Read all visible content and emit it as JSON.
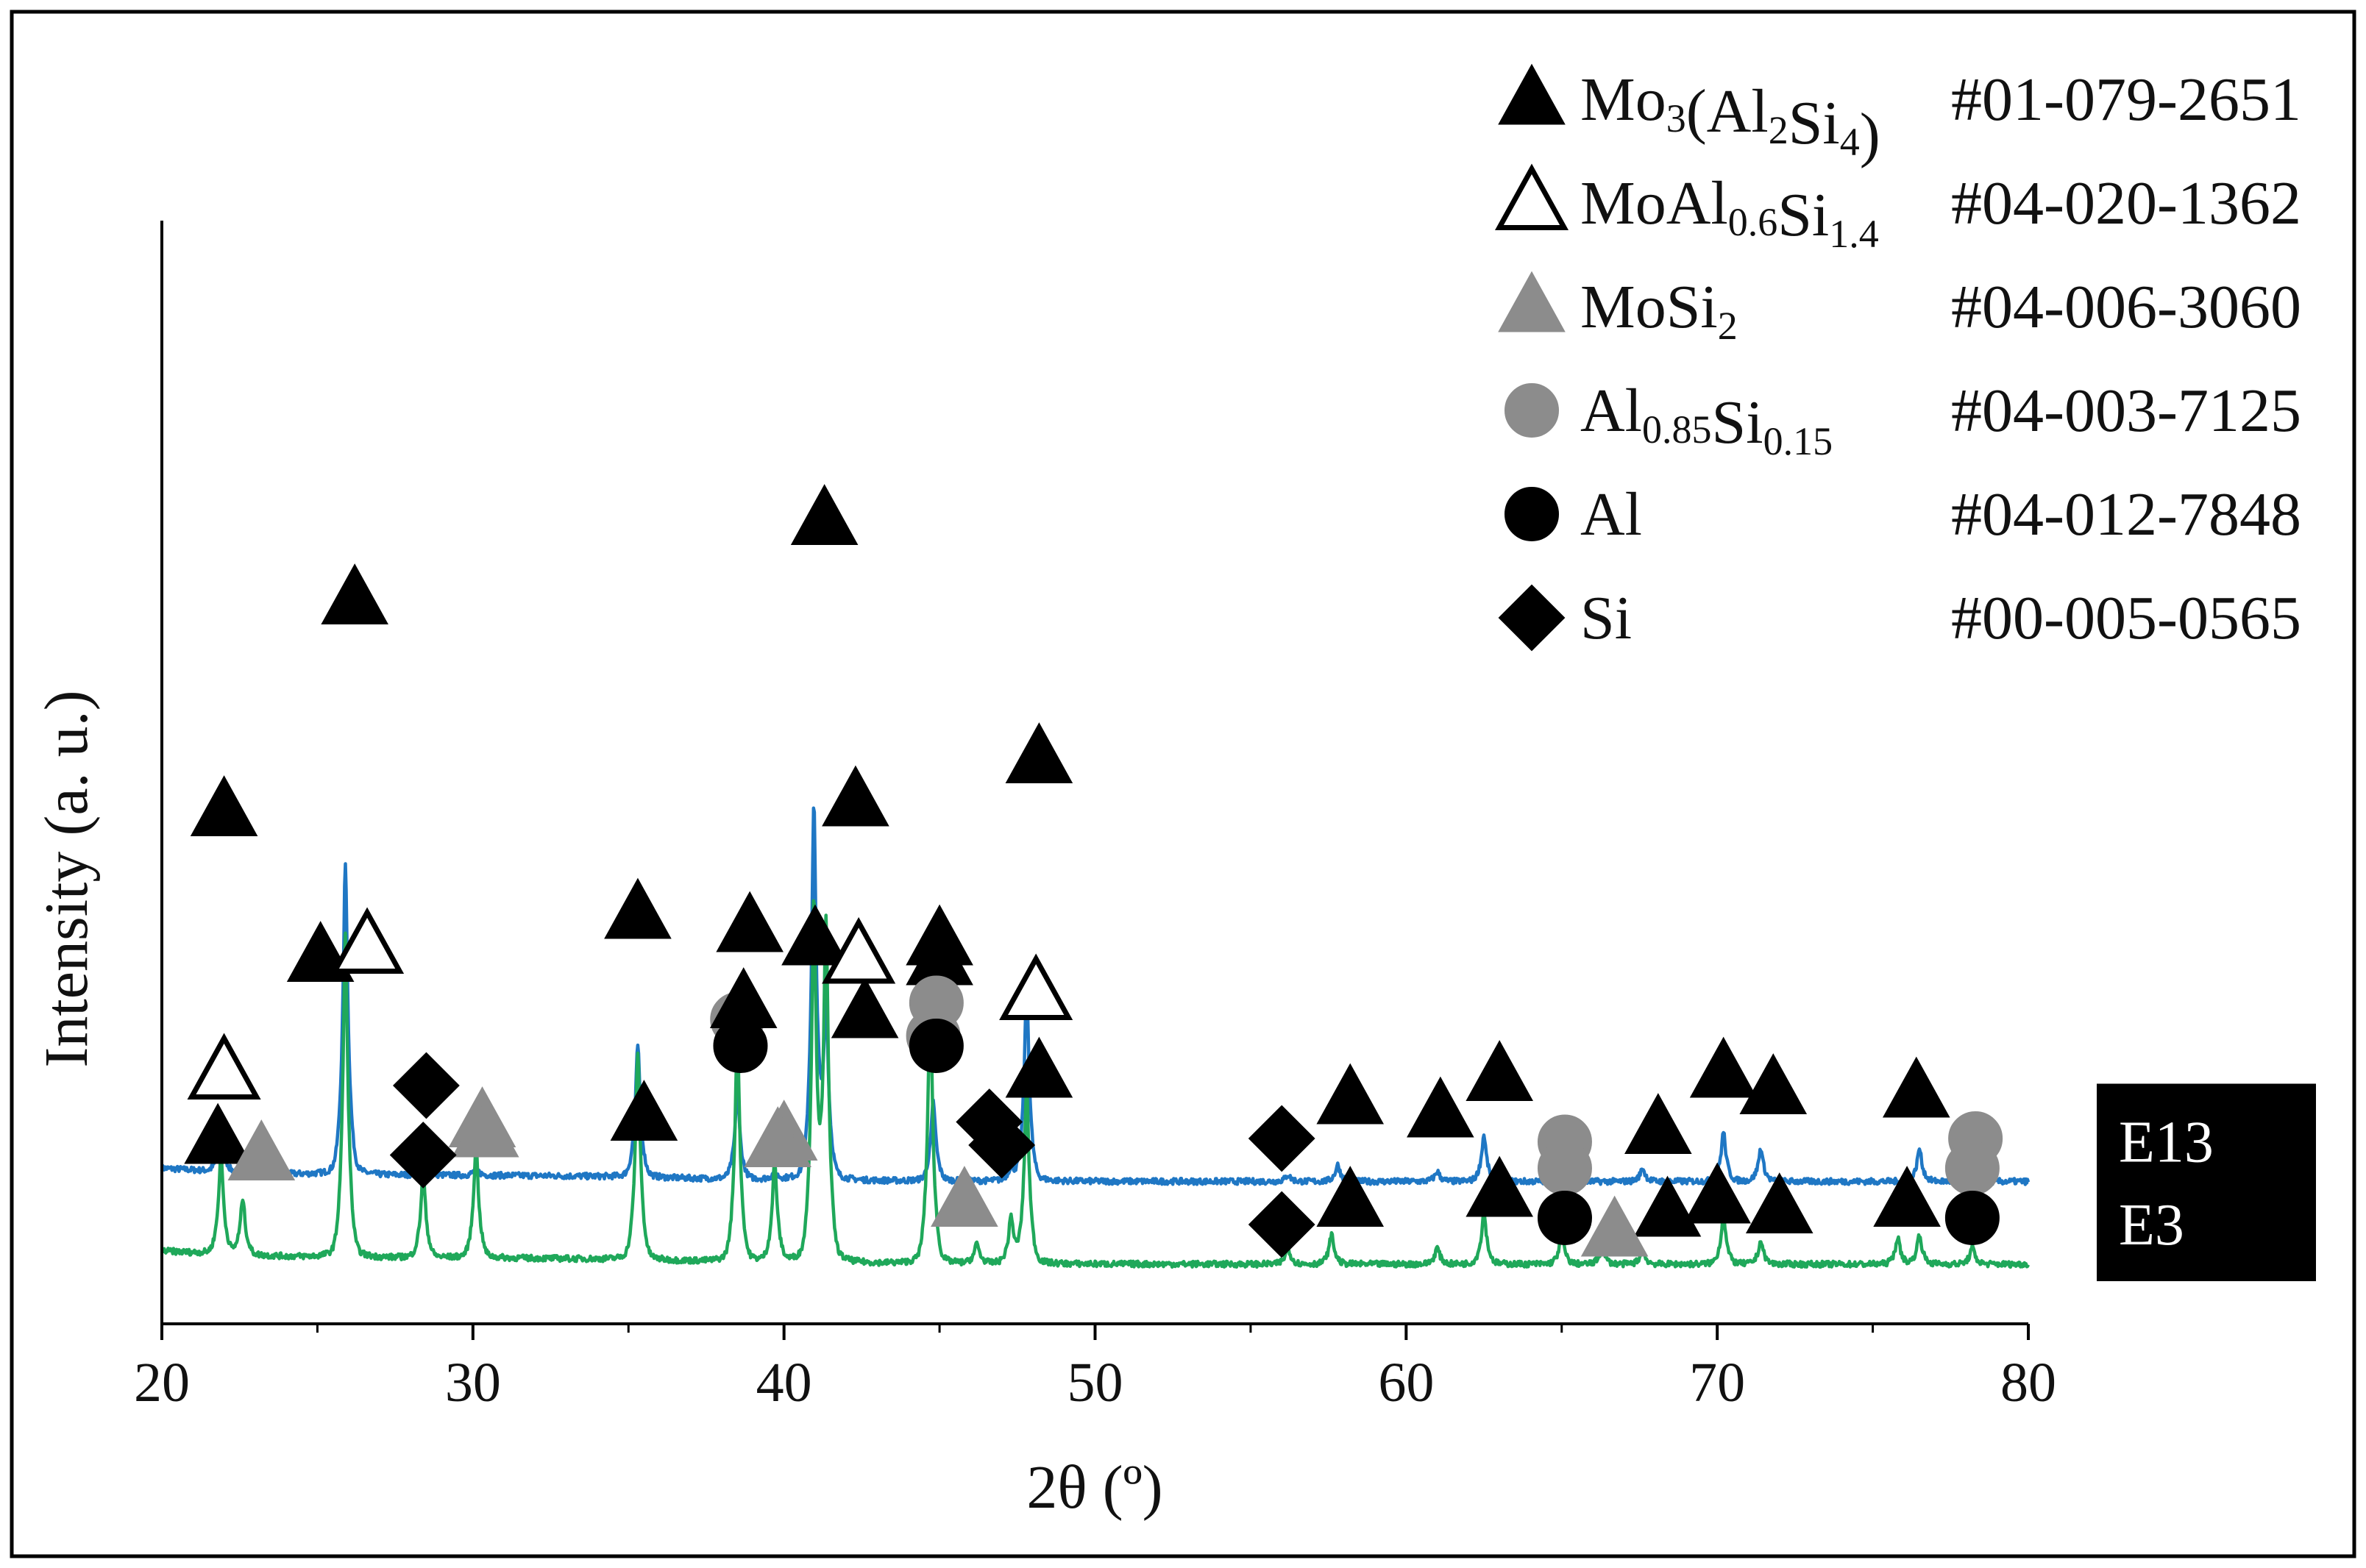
{
  "chart_data": {
    "type": "line",
    "title": "",
    "xlabel": "2θ  (º)",
    "ylabel": "Intensity  (a. u.)",
    "xlim": [
      20,
      80
    ],
    "xticks": [
      "20",
      "30",
      "40",
      "50",
      "60",
      "70",
      "80"
    ],
    "y_ticks_shown": false,
    "series": [
      {
        "name": "E13",
        "color": "#1f77c4",
        "baseline": 0.43,
        "peaks": [
          [
            21.9,
            0.13
          ],
          [
            25.9,
            0.94
          ],
          [
            28.4,
            0.07
          ],
          [
            30.1,
            0.02
          ],
          [
            35.3,
            0.4
          ],
          [
            38.5,
            0.26
          ],
          [
            39.7,
            0.02
          ],
          [
            40.96,
            1.12
          ],
          [
            41.35,
            0.52
          ],
          [
            44.8,
            0.24
          ],
          [
            47.3,
            0.04
          ],
          [
            47.8,
            0.59
          ],
          [
            56.2,
            0.02
          ],
          [
            57.8,
            0.05
          ],
          [
            61.0,
            0.03
          ],
          [
            62.5,
            0.14
          ],
          [
            65.0,
            0.02
          ],
          [
            67.6,
            0.04
          ],
          [
            70.2,
            0.15
          ],
          [
            71.4,
            0.1
          ],
          [
            76.5,
            0.1
          ],
          [
            78.2,
            0.02
          ]
        ],
        "markers": [
          {
            "x": 22.0,
            "level": 1.12,
            "phase": "mo3_al2si4"
          },
          {
            "x": 26.2,
            "level": 1.76,
            "phase": "mo3_al2si4"
          },
          {
            "x": 35.3,
            "level": 0.81,
            "phase": "mo3_al2si4"
          },
          {
            "x": 38.9,
            "level": 0.77,
            "phase": "mo3_al2si4"
          },
          {
            "x": 41.3,
            "level": 2.0,
            "phase": "mo3_al2si4"
          },
          {
            "x": 42.3,
            "level": 1.15,
            "phase": "mo3_al2si4"
          },
          {
            "x": 45.0,
            "level": 0.73,
            "phase": "mo3_al2si4"
          },
          {
            "x": 48.2,
            "level": 1.28,
            "phase": "mo3_al2si4"
          },
          {
            "x": 58.2,
            "level": 0.25,
            "phase": "mo3_al2si4"
          },
          {
            "x": 61.1,
            "level": 0.21,
            "phase": "mo3_al2si4"
          },
          {
            "x": 63.0,
            "level": 0.32,
            "phase": "mo3_al2si4"
          },
          {
            "x": 68.1,
            "level": 0.16,
            "phase": "mo3_al2si4"
          },
          {
            "x": 70.2,
            "level": 0.33,
            "phase": "mo3_al2si4"
          },
          {
            "x": 71.8,
            "level": 0.28,
            "phase": "mo3_al2si4"
          },
          {
            "x": 76.4,
            "level": 0.27,
            "phase": "mo3_al2si4"
          },
          {
            "x": 30.3,
            "level": 0.18,
            "phase": "mosi2"
          },
          {
            "x": 40.0,
            "level": 0.14,
            "phase": "mosi2"
          },
          {
            "x": 38.5,
            "level": 0.49,
            "phase": "al085si015"
          },
          {
            "x": 44.8,
            "level": 0.44,
            "phase": "al085si015"
          },
          {
            "x": 65.1,
            "level": 0.12,
            "phase": "al085si015"
          },
          {
            "x": 78.3,
            "level": 0.13,
            "phase": "al085si015"
          },
          {
            "x": 28.5,
            "level": 0.29,
            "phase": "si"
          },
          {
            "x": 46.6,
            "level": 0.18,
            "phase": "si"
          },
          {
            "x": 56.0,
            "level": 0.13,
            "phase": "si"
          }
        ]
      },
      {
        "name": "E3",
        "color": "#1fa85a",
        "baseline": 0.18,
        "peaks": [
          [
            21.9,
            0.3
          ],
          [
            22.6,
            0.17
          ],
          [
            25.9,
            0.98
          ],
          [
            28.4,
            0.26
          ],
          [
            30.1,
            0.34
          ],
          [
            35.3,
            0.63
          ],
          [
            38.5,
            0.69
          ],
          [
            39.7,
            0.3
          ],
          [
            40.96,
            1.07
          ],
          [
            41.35,
            1.02
          ],
          [
            44.7,
            0.8
          ],
          [
            46.2,
            0.06
          ],
          [
            47.3,
            0.14
          ],
          [
            47.8,
            0.53
          ],
          [
            56.2,
            0.05
          ],
          [
            57.6,
            0.09
          ],
          [
            61.0,
            0.05
          ],
          [
            62.5,
            0.16
          ],
          [
            65.0,
            0.09
          ],
          [
            66.3,
            0.05
          ],
          [
            67.6,
            0.04
          ],
          [
            70.2,
            0.15
          ],
          [
            71.4,
            0.07
          ],
          [
            75.8,
            0.08
          ],
          [
            76.5,
            0.09
          ],
          [
            78.2,
            0.05
          ]
        ],
        "markers": [
          {
            "x": 21.8,
            "level": 0.38,
            "phase": "mo3_al2si4"
          },
          {
            "x": 25.1,
            "level": 0.93,
            "phase": "mo3_al2si4"
          },
          {
            "x": 35.5,
            "level": 0.45,
            "phase": "mo3_al2si4"
          },
          {
            "x": 38.7,
            "level": 0.79,
            "phase": "mo3_al2si4"
          },
          {
            "x": 41.0,
            "level": 0.98,
            "phase": "mo3_al2si4"
          },
          {
            "x": 42.6,
            "level": 0.76,
            "phase": "mo3_al2si4"
          },
          {
            "x": 45.0,
            "level": 0.92,
            "phase": "mo3_al2si4"
          },
          {
            "x": 48.2,
            "level": 0.58,
            "phase": "mo3_al2si4"
          },
          {
            "x": 58.2,
            "level": 0.19,
            "phase": "mo3_al2si4"
          },
          {
            "x": 63.0,
            "level": 0.22,
            "phase": "mo3_al2si4"
          },
          {
            "x": 68.4,
            "level": 0.16,
            "phase": "mo3_al2si4"
          },
          {
            "x": 70.0,
            "level": 0.2,
            "phase": "mo3_al2si4"
          },
          {
            "x": 72.0,
            "level": 0.17,
            "phase": "mo3_al2si4"
          },
          {
            "x": 76.1,
            "level": 0.19,
            "phase": "mo3_al2si4"
          },
          {
            "x": 22.0,
            "level": 0.58,
            "phase": "moal06si14"
          },
          {
            "x": 26.6,
            "level": 0.96,
            "phase": "moal06si14"
          },
          {
            "x": 42.4,
            "level": 0.93,
            "phase": "moal06si14"
          },
          {
            "x": 48.1,
            "level": 0.82,
            "phase": "moal06si14"
          },
          {
            "x": 23.2,
            "level": 0.33,
            "phase": "mosi2"
          },
          {
            "x": 30.4,
            "level": 0.4,
            "phase": "mosi2"
          },
          {
            "x": 39.8,
            "level": 0.37,
            "phase": "mosi2"
          },
          {
            "x": 45.8,
            "level": 0.19,
            "phase": "mosi2"
          },
          {
            "x": 66.7,
            "level": 0.1,
            "phase": "mosi2"
          },
          {
            "x": 44.9,
            "level": 0.79,
            "phase": "al085si015"
          },
          {
            "x": 65.1,
            "level": 0.29,
            "phase": "al085si015"
          },
          {
            "x": 78.2,
            "level": 0.29,
            "phase": "al085si015"
          },
          {
            "x": 38.6,
            "level": 0.66,
            "phase": "al"
          },
          {
            "x": 44.9,
            "level": 0.66,
            "phase": "al"
          },
          {
            "x": 65.1,
            "level": 0.14,
            "phase": "al"
          },
          {
            "x": 78.2,
            "level": 0.14,
            "phase": "al"
          },
          {
            "x": 28.4,
            "level": 0.33,
            "phase": "si"
          },
          {
            "x": 47.0,
            "level": 0.36,
            "phase": "si"
          },
          {
            "x": 56.0,
            "level": 0.12,
            "phase": "si"
          }
        ]
      }
    ],
    "legend": {
      "placement": "top-right",
      "entries": [
        {
          "phase": "mo3_al2si4",
          "parts": [
            [
              "Mo",
              ""
            ],
            [
              "3",
              "sub"
            ],
            [
              "(Al",
              ""
            ],
            [
              "2",
              "sub"
            ],
            [
              "Si",
              ""
            ],
            [
              "4",
              "sub"
            ],
            [
              ")",
              ""
            ]
          ],
          "card": "#01-079-2651"
        },
        {
          "phase": "moal06si14",
          "parts": [
            [
              "MoAl",
              ""
            ],
            [
              "0.6",
              "sub"
            ],
            [
              "Si",
              ""
            ],
            [
              "1.4",
              "sub"
            ]
          ],
          "card": "#04-020-1362"
        },
        {
          "phase": "mosi2",
          "parts": [
            [
              "MoSi",
              ""
            ],
            [
              "2",
              "sub"
            ]
          ],
          "card": "#04-006-3060"
        },
        {
          "phase": "al085si015",
          "parts": [
            [
              "Al",
              ""
            ],
            [
              "0.85",
              "sub"
            ],
            [
              "Si",
              ""
            ],
            [
              "0.15",
              "sub"
            ]
          ],
          "card": "#04-003-7125"
        },
        {
          "phase": "al",
          "parts": [
            [
              "Al",
              ""
            ]
          ],
          "card": "#04-012-7848"
        },
        {
          "phase": "si",
          "parts": [
            [
              "Si",
              ""
            ]
          ],
          "card": "#00-005-0565"
        }
      ]
    },
    "phase_symbols": {
      "mo3_al2si4": {
        "shape": "triangle",
        "fill": "#000000",
        "stroke": "#000000"
      },
      "moal06si14": {
        "shape": "triangle",
        "fill": "#ffffff",
        "stroke": "#000000"
      },
      "mosi2": {
        "shape": "triangle",
        "fill": "#8c8c8c",
        "stroke": "#8c8c8c"
      },
      "al085si015": {
        "shape": "circle",
        "fill": "#8c8c8c",
        "stroke": "#8c8c8c"
      },
      "al": {
        "shape": "circle",
        "fill": "#000000",
        "stroke": "#000000"
      },
      "si": {
        "shape": "diamond",
        "fill": "#000000",
        "stroke": "#000000"
      }
    },
    "sample_labels": [
      {
        "series": "E13",
        "text": "E13"
      },
      {
        "series": "E3",
        "text": "E3"
      }
    ]
  }
}
